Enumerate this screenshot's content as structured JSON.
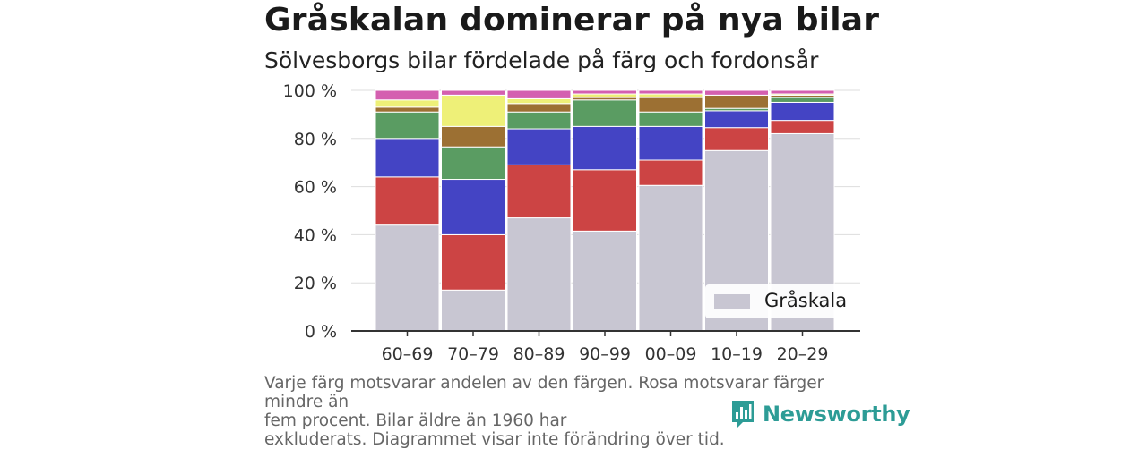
{
  "header": {
    "title": "Gråskalan dominerar på nya bilar",
    "subtitle": "Sölvesborgs bilar fördelade på färg och fordonsår"
  },
  "footer": {
    "note_lines": [
      "Varje färg motsvarar andelen av den färgen. Rosa motsvarar färger mindre än",
      "fem procent. Bilar äldre än 1960 har",
      "exkluderats. Diagrammet visar inte förändring över tid."
    ],
    "brand": "Newsworthy",
    "brand_icon": "newsworthy-bar-chart-logo"
  },
  "chart_data": {
    "type": "bar",
    "stacked": true,
    "categories": [
      "60–69",
      "70–79",
      "80–89",
      "90–99",
      "00–09",
      "10–19",
      "20–29"
    ],
    "y_tick_labels": [
      "0 %",
      "20 %",
      "40 %",
      "60 %",
      "80 %",
      "100 %"
    ],
    "ylim": [
      0,
      100
    ],
    "grid": true,
    "legend": {
      "position": "bottom-right",
      "label": "Gråskala"
    },
    "series": [
      {
        "key": "grayscale",
        "name": "Gråskala",
        "color": "#c8c6d2",
        "values": [
          44,
          17,
          47,
          41.5,
          60.5,
          75,
          82
        ]
      },
      {
        "key": "red",
        "color": "#cc4444",
        "values": [
          20,
          23,
          22,
          25.5,
          10.5,
          9.5,
          5.5
        ]
      },
      {
        "key": "blue",
        "color": "#4444c4",
        "values": [
          16,
          23,
          15,
          18,
          14,
          7,
          7.5
        ]
      },
      {
        "key": "green",
        "color": "#5a9c62",
        "values": [
          11,
          13.5,
          7,
          11,
          6,
          1,
          2
        ]
      },
      {
        "key": "brown",
        "color": "#9c7033",
        "values": [
          2,
          8.5,
          3.5,
          1,
          6,
          5.5,
          1
        ]
      },
      {
        "key": "yellow",
        "color": "#eef078",
        "values": [
          3,
          13,
          2,
          1.5,
          1.5,
          0,
          0.5
        ]
      },
      {
        "key": "pink",
        "color": "#d460b0",
        "values": [
          4,
          2,
          3.5,
          1.5,
          1.5,
          2,
          1.5
        ]
      }
    ]
  }
}
